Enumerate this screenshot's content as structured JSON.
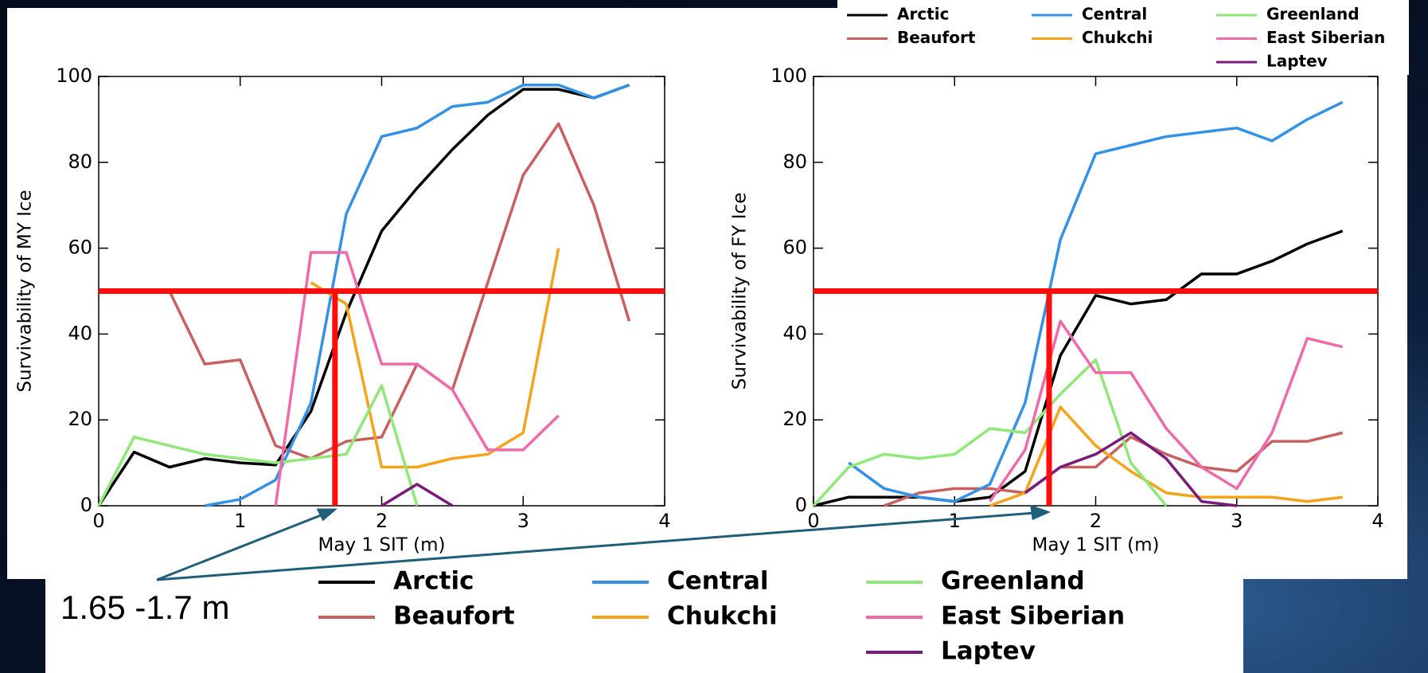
{
  "chart_data": [
    {
      "type": "line",
      "xlabel": "May 1 SIT (m)",
      "ylabel": "Survivability of MY Ice",
      "xlim": [
        0,
        4
      ],
      "ylim": [
        0,
        100
      ],
      "xticks": [
        0,
        1,
        2,
        3,
        4
      ],
      "yticks": [
        0,
        20,
        40,
        60,
        80,
        100
      ],
      "hline": 50,
      "vline": 1.67,
      "annotation": "1.65 -1.7 m",
      "series": [
        {
          "name": "Arctic",
          "color": "#000000",
          "x": [
            0,
            0.25,
            0.5,
            0.75,
            1,
            1.25,
            1.5,
            1.75,
            2,
            2.25,
            2.5,
            2.75,
            3,
            3.25,
            3.5,
            3.75
          ],
          "values": [
            0,
            12.5,
            9,
            11,
            10,
            9.5,
            22,
            45,
            64,
            74,
            83,
            91,
            97,
            97,
            95,
            98
          ]
        },
        {
          "name": "Beaufort",
          "color": "#c8605f",
          "x": [
            0.5,
            0.75,
            1,
            1.25,
            1.5,
            1.75,
            2,
            2.25,
            2.5,
            2.75,
            3,
            3.25,
            3.5,
            3.75
          ],
          "values": [
            50,
            33,
            34,
            14,
            11,
            15,
            16,
            33,
            27,
            52,
            77,
            89,
            70,
            43
          ]
        },
        {
          "name": "Central",
          "color": "#3391e6",
          "x": [
            0.75,
            1,
            1.25,
            1.5,
            1.75,
            2,
            2.25,
            2.5,
            2.75,
            3,
            3.25,
            3.5,
            3.75
          ],
          "values": [
            0,
            1.5,
            6,
            24,
            68,
            86,
            88,
            93,
            94,
            98,
            98,
            95,
            98
          ]
        },
        {
          "name": "Chukchi",
          "color": "#f5a31c",
          "x": [
            1.5,
            1.75,
            2,
            2.25,
            2.5,
            2.75,
            3,
            3.25
          ],
          "values": [
            52,
            47,
            9,
            9,
            11,
            12,
            17,
            60
          ]
        },
        {
          "name": "Greenland",
          "color": "#90e879",
          "x": [
            0,
            0.25,
            0.5,
            0.75,
            1,
            1.25,
            1.5,
            1.75,
            2,
            2.25
          ],
          "values": [
            0,
            16,
            14,
            12,
            11,
            10,
            11,
            12,
            28,
            0
          ]
        },
        {
          "name": "East Siberian",
          "color": "#f06aaa",
          "x": [
            1.25,
            1.5,
            1.75,
            2,
            2.25,
            2.5,
            2.75,
            3,
            3.25
          ],
          "values": [
            0,
            59,
            59,
            33,
            33,
            27,
            13,
            13,
            21
          ]
        },
        {
          "name": "Laptev",
          "color": "#7a1a7a",
          "x": [
            2,
            2.25,
            2.5
          ],
          "values": [
            0,
            5,
            0
          ]
        }
      ]
    },
    {
      "type": "line",
      "xlabel": "May 1 SIT (m)",
      "ylabel": "Survivability of FY Ice",
      "xlim": [
        0,
        4
      ],
      "ylim": [
        0,
        100
      ],
      "xticks": [
        0,
        1,
        2,
        3,
        4
      ],
      "yticks": [
        0,
        20,
        40,
        60,
        80,
        100
      ],
      "hline": 50,
      "vline": 1.67,
      "series": [
        {
          "name": "Arctic",
          "color": "#000000",
          "x": [
            0,
            0.25,
            0.5,
            0.75,
            1,
            1.25,
            1.5,
            1.75,
            2,
            2.25,
            2.5,
            2.75,
            3,
            3.25,
            3.5,
            3.75
          ],
          "values": [
            0,
            2,
            2,
            2,
            1,
            2,
            8,
            35,
            49,
            47,
            48,
            54,
            54,
            57,
            61,
            64
          ]
        },
        {
          "name": "Beaufort",
          "color": "#c8605f",
          "x": [
            0.5,
            0.75,
            1,
            1.25,
            1.5,
            1.75,
            2,
            2.25,
            2.5,
            2.75,
            3,
            3.25,
            3.5,
            3.75
          ],
          "values": [
            0,
            3,
            4,
            4,
            3,
            9,
            9,
            16,
            12,
            9,
            8,
            15,
            15,
            17
          ]
        },
        {
          "name": "Central",
          "color": "#3391e6",
          "x": [
            0.25,
            0.5,
            0.75,
            1,
            1.25,
            1.5,
            1.75,
            2,
            2.25,
            2.5,
            2.75,
            3,
            3.25,
            3.5,
            3.75
          ],
          "values": [
            10,
            4,
            2,
            1,
            5,
            24,
            62,
            82,
            84,
            86,
            87,
            88,
            85,
            90,
            94
          ]
        },
        {
          "name": "Chukchi",
          "color": "#f5a31c",
          "x": [
            1.25,
            1.5,
            1.75,
            2,
            2.25,
            2.5,
            2.75,
            3,
            3.25,
            3.5,
            3.75
          ],
          "values": [
            0,
            3,
            23,
            14,
            8,
            3,
            2,
            2,
            2,
            1,
            2
          ]
        },
        {
          "name": "Greenland",
          "color": "#90e879",
          "x": [
            0,
            0.25,
            0.5,
            0.75,
            1,
            1.25,
            1.5,
            1.75,
            2,
            2.25,
            2.5
          ],
          "values": [
            0,
            9,
            12,
            11,
            12,
            18,
            17,
            26,
            34,
            10,
            0
          ]
        },
        {
          "name": "East Siberian",
          "color": "#f06aaa",
          "x": [
            1.25,
            1.5,
            1.75,
            2,
            2.25,
            2.5,
            2.75,
            3,
            3.25,
            3.5,
            3.75
          ],
          "values": [
            1,
            13,
            43,
            31,
            31,
            18,
            9,
            4,
            17,
            39,
            37
          ]
        },
        {
          "name": "Laptev",
          "color": "#7a1a7a",
          "x": [
            1.5,
            1.75,
            2,
            2.25,
            2.5,
            2.75,
            3
          ],
          "values": [
            3,
            9,
            12,
            17,
            11,
            1,
            0
          ]
        }
      ]
    }
  ]
}
